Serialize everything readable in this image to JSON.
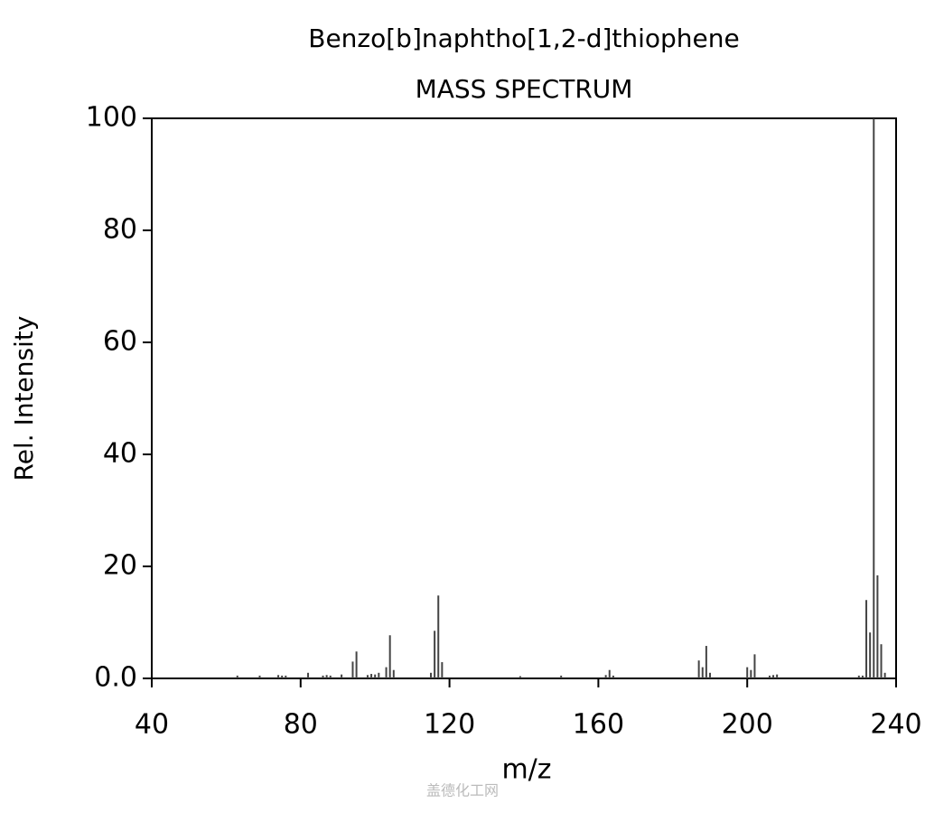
{
  "chart_data": {
    "type": "stem",
    "title": "Benzo[b]naphtho[1,2-d]thiophene",
    "subtitle": "MASS SPECTRUM",
    "x_label": "m/z",
    "y_label": "Rel. Intensity",
    "watermark": "盖德化工网",
    "color": "#444444",
    "x": [
      63,
      69,
      74,
      75,
      76,
      82,
      86,
      87,
      88,
      91,
      94,
      95,
      98,
      99,
      100,
      101,
      103,
      104,
      105,
      115,
      116,
      117,
      118,
      139,
      150,
      162,
      163,
      164,
      187,
      188,
      189,
      190,
      200,
      201,
      202,
      206,
      207,
      208,
      230,
      231,
      232,
      233,
      234,
      235,
      236,
      237
    ],
    "values": [
      0.5,
      0.5,
      0.6,
      0.5,
      0.5,
      1,
      0.5,
      0.6,
      0.5,
      0.7,
      3,
      4.8,
      0.6,
      0.8,
      0.7,
      1,
      2,
      7.7,
      1.5,
      1,
      8.5,
      14.8,
      2.9,
      0.4,
      0.5,
      0.6,
      1.5,
      0.5,
      3.2,
      2,
      5.8,
      1,
      2,
      1.5,
      4.3,
      0.5,
      0.6,
      0.7,
      0.5,
      0.5,
      14,
      8.2,
      100,
      18.4,
      6.1,
      1
    ],
    "xlim": [
      40,
      240
    ],
    "xticks": [
      40,
      80,
      120,
      160,
      200,
      240
    ],
    "ylim": [
      0,
      100
    ],
    "yticks": [
      {
        "value": 0,
        "label": "0.0"
      },
      20,
      40,
      60,
      80,
      100
    ]
  }
}
